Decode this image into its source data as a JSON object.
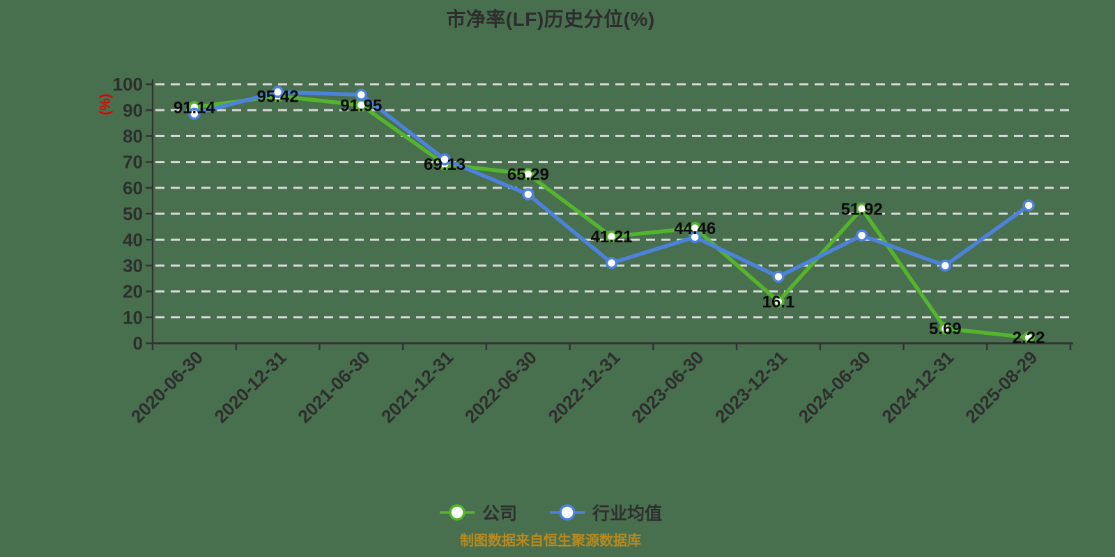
{
  "title": "市净率(LF)历史分位(%)",
  "y_axis_name": "(%)",
  "caption": "制图数据来自恒生聚源数据库",
  "colors": {
    "background": "#48704e",
    "company_series": "#55b42d",
    "industry_series": "#4d82dc",
    "grid": "#d9d9d9",
    "axis": "#333333",
    "tick_label": "#2e2e2e",
    "data_label": "#0b0b0b",
    "y_axis_name": "#e60000",
    "caption": "#b8891f"
  },
  "chart_data": {
    "type": "line",
    "title": "市净率(LF)历史分位(%)",
    "ylabel": "(%)",
    "ylim": [
      0,
      100
    ],
    "ytick_interval": 10,
    "yticks": [
      0,
      10,
      20,
      30,
      40,
      50,
      60,
      70,
      80,
      90,
      100
    ],
    "grid": "horizontal dashed",
    "legend_position": "bottom",
    "categories": [
      "2020-06-30",
      "2020-12-31",
      "2021-06-30",
      "2021-12-31",
      "2022-06-30",
      "2022-12-31",
      "2023-06-30",
      "2023-12-31",
      "2024-06-30",
      "2024-12-31",
      "2025-08-29"
    ],
    "series": [
      {
        "id": "company",
        "name": "公司",
        "color": "#55b42d",
        "labels_shown": true,
        "values": [
          91.14,
          95.42,
          91.95,
          69.13,
          65.29,
          41.21,
          44.46,
          16.1,
          51.92,
          5.69,
          2.22
        ]
      },
      {
        "id": "industry-average",
        "name": "行业均值",
        "color": "#4d82dc",
        "labels_shown": false,
        "values": [
          88.6,
          97.0,
          95.9,
          71.0,
          57.5,
          31.0,
          41.0,
          25.7,
          41.6,
          30.0,
          53.2
        ]
      }
    ]
  }
}
